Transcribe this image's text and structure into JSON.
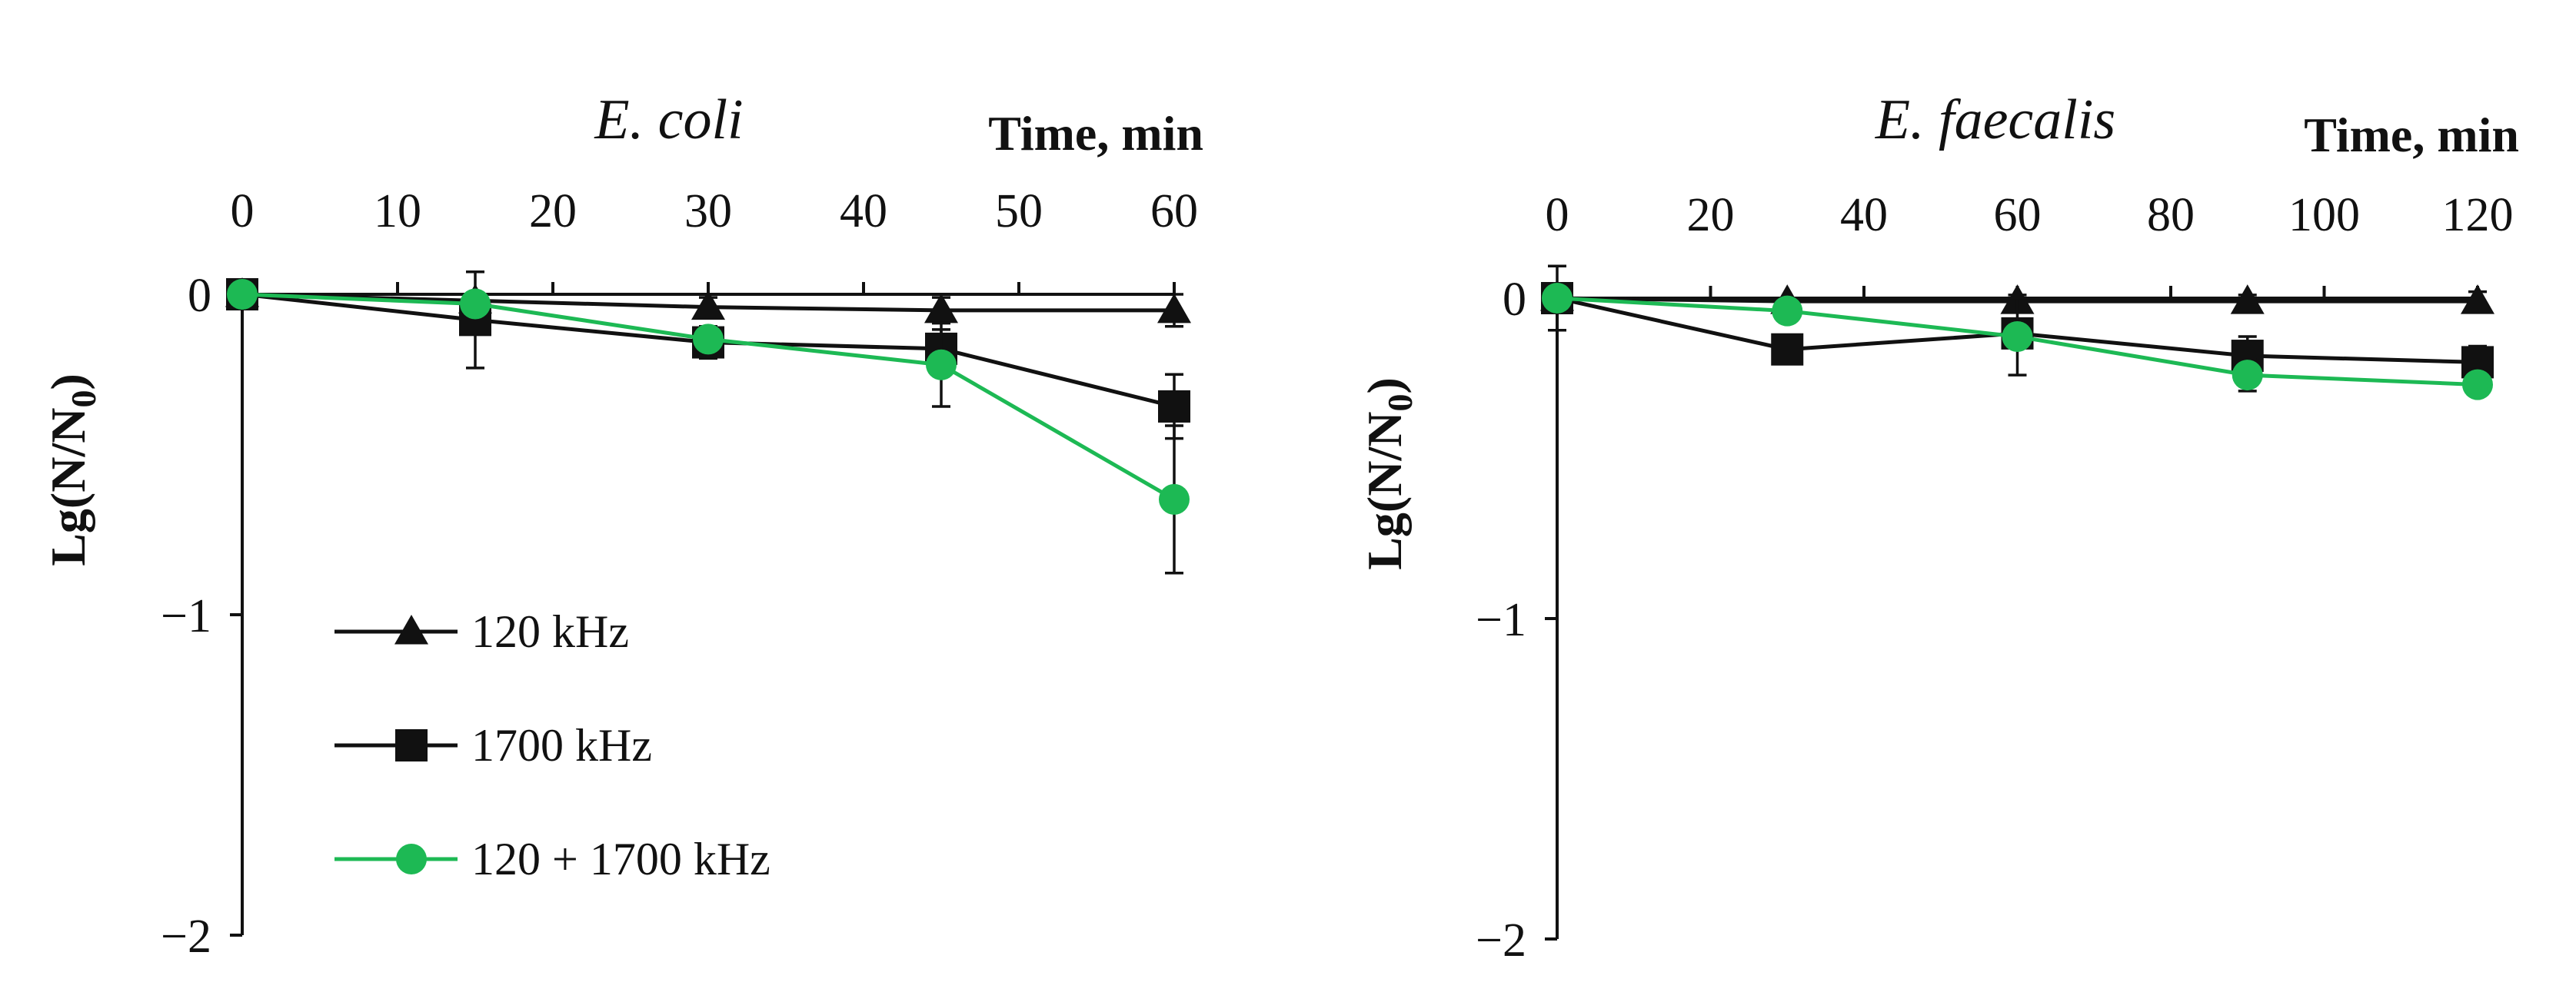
{
  "colors": {
    "black_series": "#111111",
    "green_series": "#1db954",
    "axis": "#111111"
  },
  "chart_data": [
    {
      "type": "line",
      "title": "E. coli",
      "xlabel": "Time, min",
      "ylabel_main": "Lg(N/N",
      "ylabel_sub": "0",
      "ylabel_close": ")",
      "x_axis_position": "top",
      "xlim": [
        0,
        60
      ],
      "ylim": [
        -2,
        0
      ],
      "xticks": [
        0,
        10,
        20,
        30,
        40,
        50,
        60
      ],
      "xtick_labels": [
        "0",
        "10",
        "20",
        "30",
        "40",
        "50",
        "60"
      ],
      "yticks": [
        0,
        -1,
        -2
      ],
      "ytick_labels": [
        "0",
        "−1",
        "−2"
      ],
      "grid": false,
      "legend": {
        "placement": "lower-left",
        "entries": [
          "120 kHz",
          "1700 kHz",
          "120 + 1700 kHz"
        ]
      },
      "series": [
        {
          "name": "120 kHz",
          "marker": "triangle",
          "color": "#111111",
          "x": [
            0,
            15,
            30,
            45,
            60
          ],
          "y": [
            0,
            -0.02,
            -0.04,
            -0.05,
            -0.05
          ],
          "err": [
            0.01,
            0.02,
            0.03,
            0.04,
            0.05
          ]
        },
        {
          "name": "1700 kHz",
          "marker": "square",
          "color": "#111111",
          "x": [
            0,
            15,
            30,
            45,
            60
          ],
          "y": [
            0,
            -0.08,
            -0.15,
            -0.17,
            -0.35
          ],
          "err": [
            0.01,
            0.15,
            0.05,
            0.06,
            0.1
          ]
        },
        {
          "name": "120 + 1700 kHz",
          "marker": "circle",
          "color": "#1db954",
          "x": [
            0,
            15,
            30,
            45,
            60
          ],
          "y": [
            0,
            -0.03,
            -0.14,
            -0.22,
            -0.64
          ],
          "err": [
            0.01,
            0.02,
            0.04,
            0.13,
            0.23
          ]
        }
      ]
    },
    {
      "type": "line",
      "title": "E. faecalis",
      "xlabel": "Time, min",
      "ylabel_main": "Lg(N/N",
      "ylabel_sub": "0",
      "ylabel_close": ")",
      "x_axis_position": "top",
      "xlim": [
        0,
        120
      ],
      "ylim": [
        -2,
        0
      ],
      "xticks": [
        0,
        20,
        40,
        60,
        80,
        100,
        120
      ],
      "xtick_labels": [
        "0",
        "20",
        "40",
        "60",
        "80",
        "100",
        "120"
      ],
      "yticks": [
        0,
        -1,
        -2
      ],
      "ytick_labels": [
        "0",
        "−1",
        "−2"
      ],
      "grid": false,
      "series": [
        {
          "name": "120 kHz",
          "marker": "triangle",
          "color": "#111111",
          "x": [
            0,
            30,
            60,
            90,
            120
          ],
          "y": [
            0,
            -0.01,
            -0.01,
            -0.01,
            -0.01
          ],
          "err": [
            0.01,
            0.01,
            0.02,
            0.02,
            0.03
          ]
        },
        {
          "name": "1700 kHz",
          "marker": "square",
          "color": "#111111",
          "x": [
            0,
            30,
            60,
            90,
            120
          ],
          "y": [
            0,
            -0.16,
            -0.11,
            -0.18,
            -0.2
          ],
          "err": [
            0.1,
            0.02,
            0.03,
            0.06,
            0.05
          ]
        },
        {
          "name": "120 + 1700 kHz",
          "marker": "circle",
          "color": "#1db954",
          "x": [
            0,
            30,
            60,
            90,
            120
          ],
          "y": [
            0,
            -0.04,
            -0.12,
            -0.24,
            -0.27
          ],
          "err": [
            0.01,
            0.01,
            0.12,
            0.05,
            0.03
          ]
        }
      ]
    }
  ]
}
